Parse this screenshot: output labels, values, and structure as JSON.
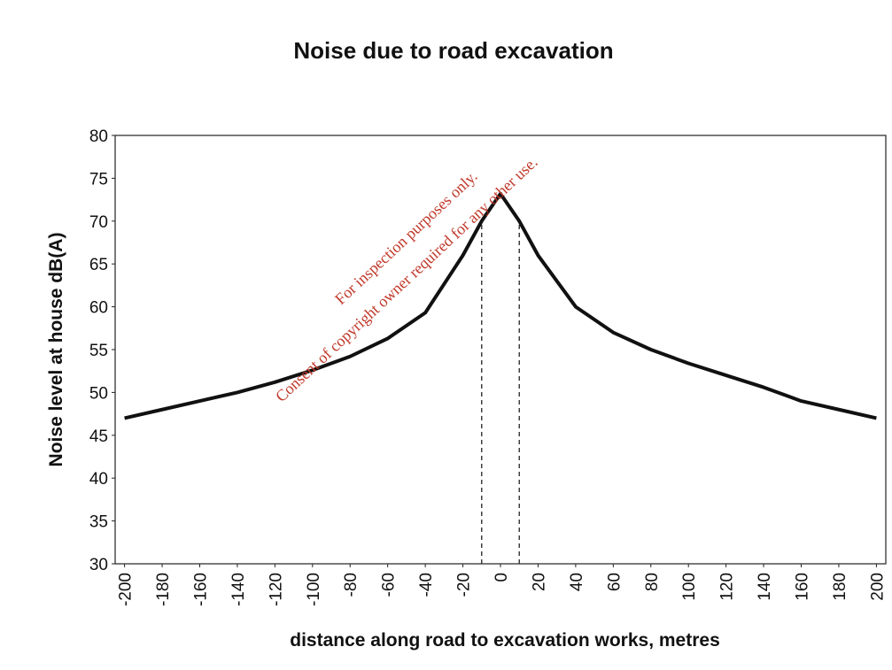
{
  "chart_data": {
    "type": "line",
    "title": "Noise due to road excavation",
    "x_label": "distance along road to excavation works, metres",
    "y_label": "Noise level at house dB(A)",
    "x": [
      -200,
      -180,
      -160,
      -140,
      -120,
      -100,
      -80,
      -60,
      -40,
      -20,
      -10,
      0,
      10,
      20,
      40,
      60,
      80,
      100,
      120,
      140,
      160,
      180,
      200
    ],
    "series": [
      {
        "name": "Noise level",
        "color": "#111111",
        "values": [
          47,
          48,
          49,
          50,
          51.2,
          52.6,
          54.2,
          56.3,
          59.3,
          66,
          70,
          73.2,
          70,
          66,
          60,
          57,
          55,
          53.4,
          52,
          50.6,
          49,
          48,
          47
        ]
      }
    ],
    "reference_lines": [
      {
        "x": -10,
        "y": 70
      },
      {
        "x": 10,
        "y": 70
      }
    ],
    "xlim": [
      -205,
      205
    ],
    "xticks": [
      -200,
      -180,
      -160,
      -140,
      -120,
      -100,
      -80,
      -60,
      -40,
      -20,
      0,
      20,
      40,
      60,
      80,
      100,
      120,
      140,
      160,
      180,
      200
    ],
    "ylim": [
      30,
      80
    ],
    "yticks": [
      30,
      35,
      40,
      45,
      50,
      55,
      60,
      65,
      70,
      75,
      80
    ],
    "annotations": [
      "For inspection purposes only.",
      "Consent of copyright owner required for any other use."
    ]
  }
}
